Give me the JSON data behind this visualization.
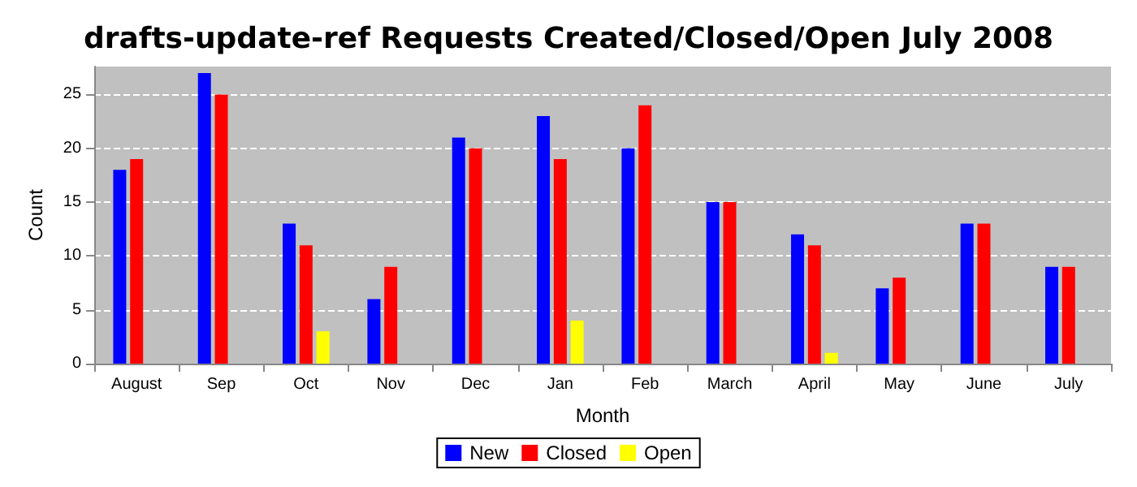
{
  "chart_data": {
    "type": "bar",
    "title": "drafts-update-ref Requests Created/Closed/Open July 2008",
    "xlabel": "Month",
    "ylabel": "Count",
    "categories": [
      "August",
      "Sep",
      "Oct",
      "Nov",
      "Dec",
      "Jan",
      "Feb",
      "March",
      "April",
      "May",
      "June",
      "July"
    ],
    "series": [
      {
        "name": "New",
        "color": "#0000ff",
        "values": [
          18,
          27,
          13,
          6,
          21,
          23,
          20,
          15,
          12,
          7,
          13,
          9
        ]
      },
      {
        "name": "Closed",
        "color": "#ff0000",
        "values": [
          19,
          25,
          11,
          9,
          20,
          19,
          24,
          15,
          11,
          8,
          13,
          9
        ]
      },
      {
        "name": "Open",
        "color": "#ffff00",
        "values": [
          0,
          0,
          3,
          0,
          0,
          4,
          0,
          0,
          1,
          0,
          0,
          0
        ]
      }
    ],
    "ylim": [
      0,
      27.6
    ],
    "yticks": [
      0,
      5,
      10,
      15,
      20,
      25
    ],
    "grid": "y",
    "legend": "bottom"
  }
}
